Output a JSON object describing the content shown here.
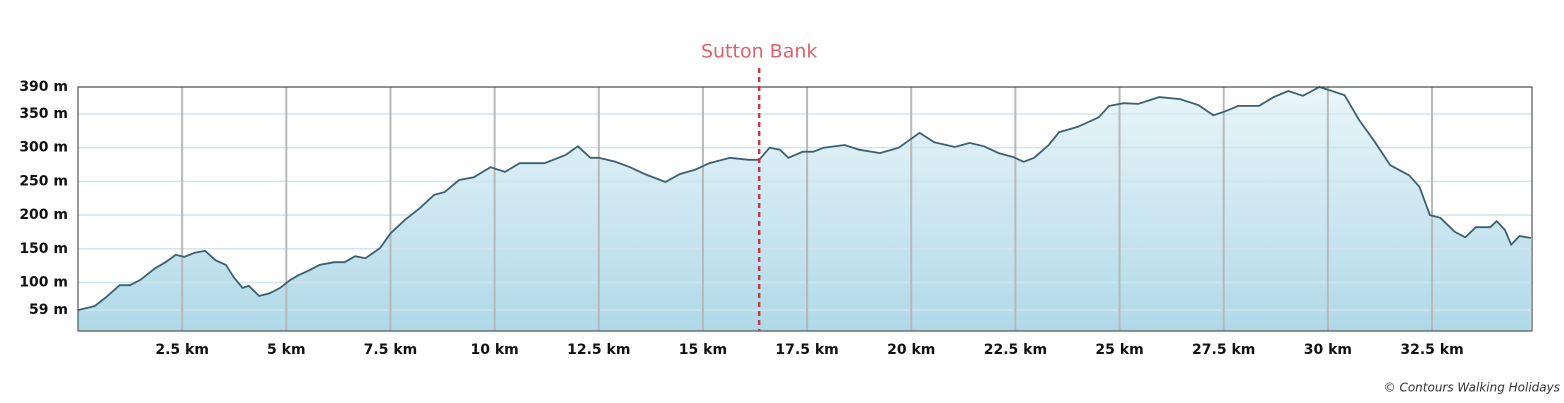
{
  "chart_data": {
    "type": "area",
    "x": [
      0,
      0.4,
      0.65,
      1.0,
      1.25,
      1.5,
      1.85,
      2.1,
      2.35,
      2.55,
      2.8,
      3.05,
      3.3,
      3.55,
      3.75,
      3.95,
      4.1,
      4.35,
      4.6,
      4.85,
      5.1,
      5.3,
      5.55,
      5.8,
      6.15,
      6.4,
      6.65,
      6.9,
      7.25,
      7.5,
      7.85,
      8.2,
      8.55,
      8.8,
      9.15,
      9.5,
      9.9,
      10.25,
      10.6,
      11.2,
      11.7,
      12.0,
      12.3,
      12.5,
      12.9,
      13.25,
      13.6,
      14.1,
      14.45,
      14.8,
      15.15,
      15.65,
      16.1,
      16.35,
      16.6,
      16.85,
      17.05,
      17.4,
      17.65,
      17.9,
      18.4,
      18.75,
      19.25,
      19.7,
      20.2,
      20.55,
      21.05,
      21.4,
      21.75,
      22.1,
      22.45,
      22.7,
      22.95,
      23.3,
      23.55,
      24.0,
      24.5,
      24.75,
      25.1,
      25.45,
      25.95,
      26.45,
      26.9,
      27.25,
      27.5,
      27.85,
      28.35,
      28.7,
      29.05,
      29.4,
      29.8,
      30.15,
      30.4,
      30.75,
      31.1,
      31.5,
      31.95,
      32.2,
      32.45,
      32.7,
      33.05,
      33.3,
      33.55,
      33.9,
      34.05,
      34.25,
      34.4,
      34.6,
      34.87
    ],
    "values": [
      59,
      65,
      77,
      96,
      96,
      104,
      121,
      130,
      141,
      138,
      144,
      147,
      133,
      126,
      107,
      92,
      95,
      80,
      84,
      92,
      104,
      111,
      118,
      126,
      130,
      130,
      139,
      136,
      151,
      173,
      193,
      210,
      230,
      234,
      252,
      256,
      271,
      264,
      277,
      277,
      289,
      302,
      285,
      285,
      279,
      271,
      261,
      249,
      261,
      267,
      277,
      285,
      282,
      282,
      300,
      297,
      285,
      294,
      294,
      300,
      304,
      297,
      292,
      300,
      322,
      308,
      301,
      307,
      302,
      292,
      286,
      279,
      285,
      304,
      323,
      331,
      345,
      362,
      366,
      365,
      375,
      372,
      363,
      348,
      353,
      362,
      362,
      375,
      384,
      377,
      390,
      383,
      378,
      341,
      311,
      274,
      259,
      242,
      200,
      196,
      175,
      167,
      182,
      182,
      191,
      178,
      156,
      169,
      166
    ],
    "color": "#3b6070",
    "fill": [
      "#eaf5fa",
      "#b0d9e8"
    ],
    "xlim": [
      0,
      34.9
    ],
    "ylim": [
      28,
      390
    ],
    "xticks": [
      {
        "value": 2.5,
        "label": "2.5 km"
      },
      {
        "value": 5,
        "label": "5 km"
      },
      {
        "value": 7.5,
        "label": "7.5 km"
      },
      {
        "value": 10,
        "label": "10 km"
      },
      {
        "value": 12.5,
        "label": "12.5 km"
      },
      {
        "value": 15,
        "label": "15 km"
      },
      {
        "value": 17.5,
        "label": "17.5 km"
      },
      {
        "value": 20,
        "label": "20 km"
      },
      {
        "value": 22.5,
        "label": "22.5 km"
      },
      {
        "value": 25,
        "label": "25 km"
      },
      {
        "value": 27.5,
        "label": "27.5 km"
      },
      {
        "value": 30,
        "label": "30 km"
      },
      {
        "value": 32.5,
        "label": "32.5 km"
      }
    ],
    "yticks": [
      {
        "value": 59,
        "label": "59 m"
      },
      {
        "value": 100,
        "label": "100 m"
      },
      {
        "value": 150,
        "label": "150 m"
      },
      {
        "value": 200,
        "label": "200 m"
      },
      {
        "value": 250,
        "label": "250 m"
      },
      {
        "value": 300,
        "label": "300 m"
      },
      {
        "value": 350,
        "label": "350 m"
      },
      {
        "value": 390,
        "label": "390 m"
      }
    ],
    "xgrid": true,
    "ygrid": true,
    "annotations": [
      {
        "x": 16.35,
        "label": "Sutton Bank",
        "color": "#e0606e",
        "line_color": "#c23a48"
      }
    ],
    "credit": "© Contours Walking Holidays"
  }
}
